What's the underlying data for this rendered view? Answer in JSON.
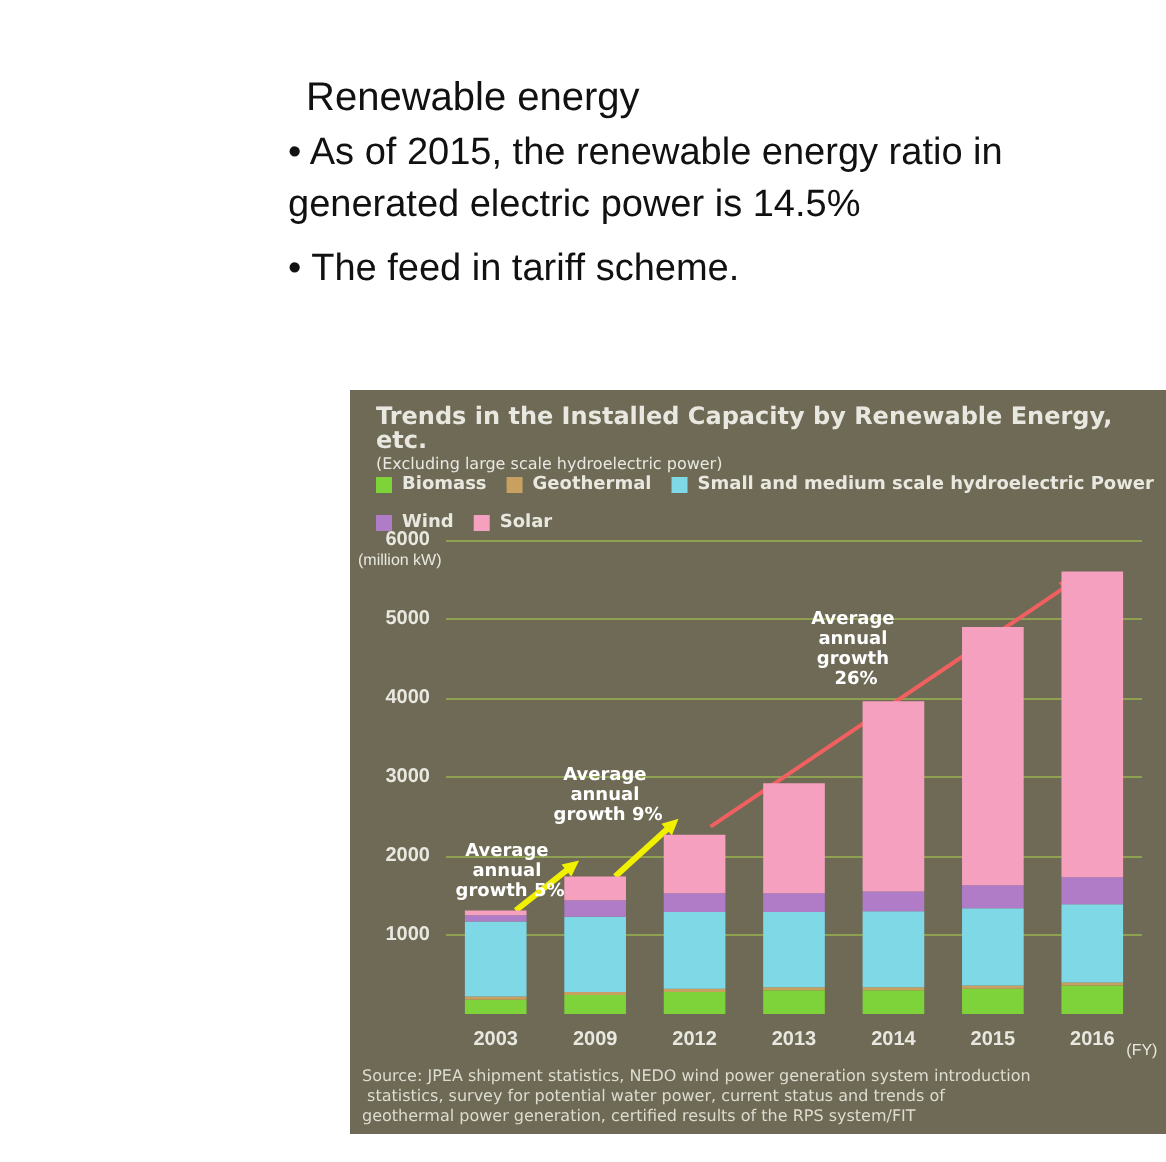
{
  "chart_data": {
    "type": "bar",
    "title": "Trends in the Installed Capacity by Renewable Energy, etc.",
    "subtitle": "(Excluding large scale hydroelectric power)",
    "categories": [
      "2003",
      "2009",
      "2012",
      "2013",
      "2014",
      "2015",
      "2016"
    ],
    "xlabel": "(FY)",
    "ylabel": "(million kW)",
    "stacked": true,
    "series": [
      {
        "name": "Biomass",
        "color": "#7ed23a",
        "values": [
          180,
          240,
          280,
          300,
          300,
          320,
          360
        ]
      },
      {
        "name": "Geothermal",
        "color": "#c8a060",
        "values": [
          40,
          40,
          40,
          40,
          40,
          40,
          40
        ]
      },
      {
        "name": "Small and medium scale hydroelectric Power",
        "color": "#7fd8e6",
        "values": [
          950,
          950,
          970,
          950,
          960,
          980,
          990
        ]
      },
      {
        "name": "Wind",
        "color": "#b07cc8",
        "values": [
          80,
          210,
          240,
          240,
          250,
          290,
          340
        ]
      },
      {
        "name": "Solar",
        "color": "#f6a0c0",
        "values": [
          60,
          300,
          740,
          1390,
          2410,
          3270,
          3870
        ]
      }
    ],
    "ylim": [
      0,
      6000
    ],
    "yticks": [
      1000,
      2000,
      3000,
      4000,
      5000,
      6000
    ],
    "grid": "y",
    "legend": "top left",
    "annotations": [
      "Renewable energy",
      "• As of 2015, the renewable energy ratio in generated electric power is 14.5%",
      "• The feed in tariff scheme.",
      "Average annual growth 5%",
      "Average annual growth 9%",
      "Average annual growth 26%",
      "Source: JPEA shipment statistics, NEDO wind power generation system introduction statistics, survey for potential water power, current status and trends of geothermal power generation, certified results of the RPS system/FIT"
    ]
  }
}
